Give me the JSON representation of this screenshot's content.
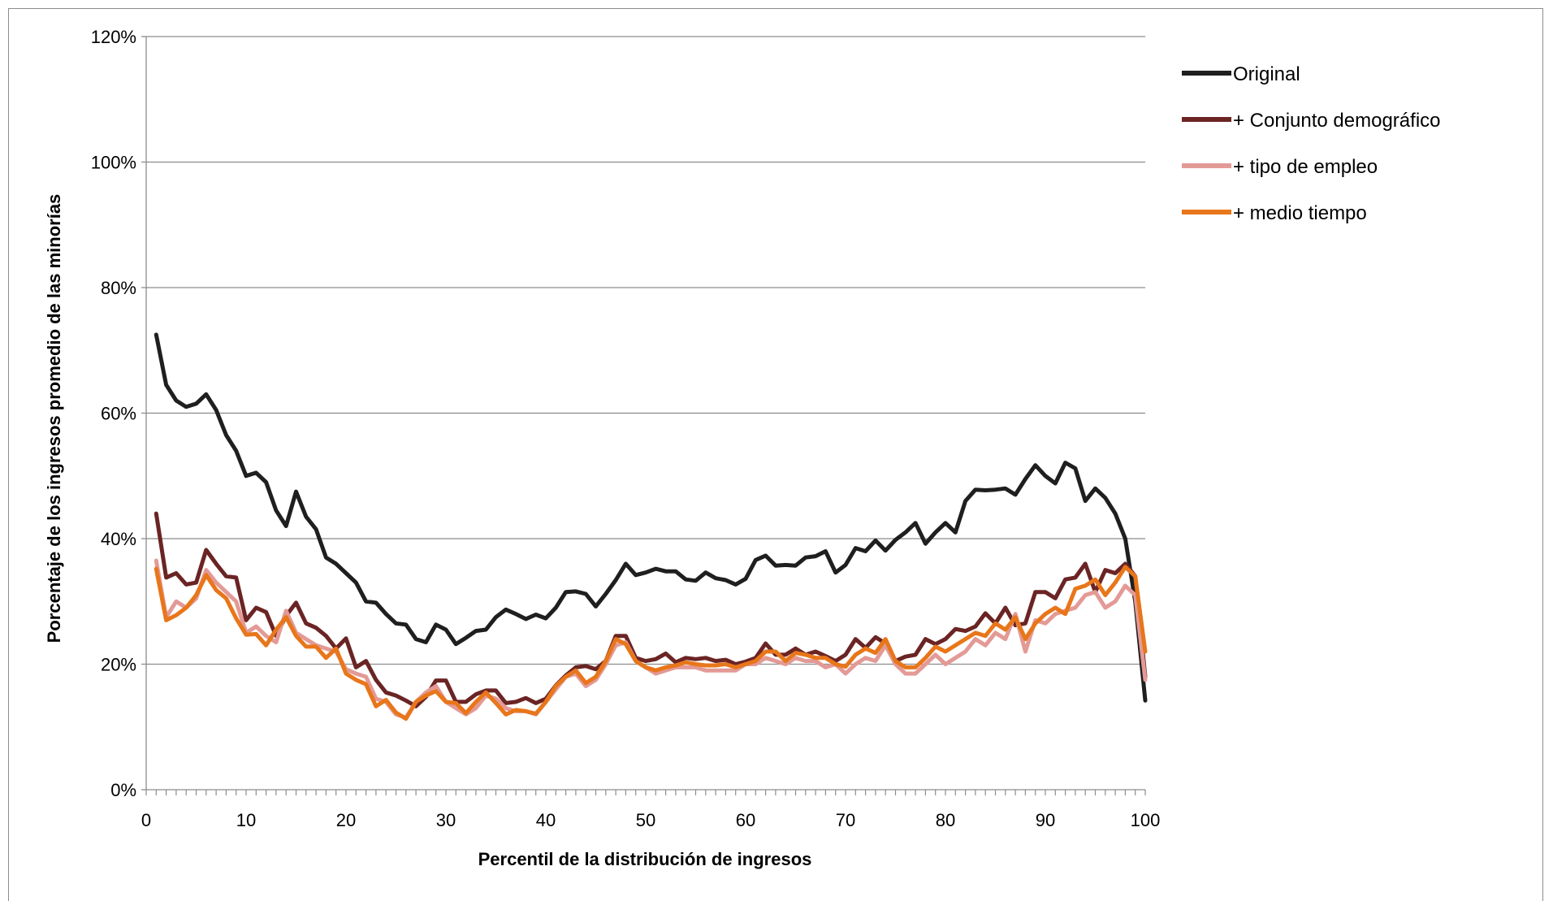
{
  "chart_data": {
    "type": "line",
    "title": "",
    "xlabel": "Percentil de la distribución de ingresos",
    "ylabel": "Porcentaje de los ingresos promedio de las minorías",
    "xlim": [
      0,
      100
    ],
    "ylim": [
      0,
      1.2
    ],
    "x_ticks": [
      0,
      10,
      20,
      30,
      40,
      50,
      60,
      70,
      80,
      90,
      100
    ],
    "x_tick_labels": [
      "0",
      "10",
      "20",
      "30",
      "40",
      "50",
      "60",
      "70",
      "80",
      "90",
      "100"
    ],
    "y_ticks": [
      0,
      0.2,
      0.4,
      0.6,
      0.8,
      1.0,
      1.2
    ],
    "y_tick_labels": [
      "0%",
      "20%",
      "40%",
      "60%",
      "80%",
      "100%",
      "120%"
    ],
    "grid": "horizontal",
    "legend_position": "top-right",
    "x": [
      1,
      2,
      3,
      4,
      5,
      6,
      7,
      8,
      9,
      10,
      11,
      12,
      13,
      14,
      15,
      16,
      17,
      18,
      19,
      20,
      21,
      22,
      23,
      24,
      25,
      26,
      27,
      28,
      29,
      30,
      31,
      32,
      33,
      34,
      35,
      36,
      37,
      38,
      39,
      40,
      41,
      42,
      43,
      44,
      45,
      46,
      47,
      48,
      49,
      50,
      51,
      52,
      53,
      54,
      55,
      56,
      57,
      58,
      59,
      60,
      61,
      62,
      63,
      64,
      65,
      66,
      67,
      68,
      69,
      70,
      71,
      72,
      73,
      74,
      75,
      76,
      77,
      78,
      79,
      80,
      81,
      82,
      83,
      84,
      85,
      86,
      87,
      88,
      89,
      90,
      91,
      92,
      93,
      94,
      95,
      96,
      97,
      98,
      99,
      100
    ],
    "series": [
      {
        "name": "Original",
        "color": "#1f1f1f",
        "values": [
          0.725,
          0.645,
          0.62,
          0.61,
          0.615,
          0.63,
          0.605,
          0.565,
          0.54,
          0.5,
          0.505,
          0.49,
          0.445,
          0.42,
          0.475,
          0.435,
          0.415,
          0.37,
          0.36,
          0.345,
          0.33,
          0.3,
          0.298,
          0.28,
          0.265,
          0.263,
          0.24,
          0.235,
          0.263,
          0.255,
          0.232,
          0.242,
          0.253,
          0.255,
          0.275,
          0.287,
          0.28,
          0.272,
          0.279,
          0.273,
          0.29,
          0.315,
          0.316,
          0.312,
          0.292,
          0.312,
          0.334,
          0.36,
          0.342,
          0.346,
          0.352,
          0.348,
          0.348,
          0.335,
          0.333,
          0.346,
          0.337,
          0.334,
          0.327,
          0.336,
          0.366,
          0.373,
          0.357,
          0.358,
          0.357,
          0.37,
          0.372,
          0.38,
          0.346,
          0.358,
          0.385,
          0.38,
          0.397,
          0.381,
          0.398,
          0.41,
          0.425,
          0.392,
          0.41,
          0.425,
          0.41,
          0.46,
          0.478,
          0.477,
          0.478,
          0.48,
          0.47,
          0.495,
          0.517,
          0.5,
          0.488,
          0.521,
          0.512,
          0.46,
          0.48,
          0.465,
          0.44,
          0.4,
          0.3,
          0.142
        ]
      },
      {
        "name": "+ Conjunto demográfico",
        "color": "#6b2424",
        "values": [
          0.44,
          0.338,
          0.345,
          0.327,
          0.33,
          0.382,
          0.36,
          0.34,
          0.338,
          0.27,
          0.29,
          0.283,
          0.245,
          0.277,
          0.298,
          0.265,
          0.258,
          0.245,
          0.225,
          0.241,
          0.195,
          0.205,
          0.175,
          0.155,
          0.15,
          0.142,
          0.133,
          0.148,
          0.174,
          0.174,
          0.14,
          0.14,
          0.152,
          0.158,
          0.158,
          0.138,
          0.14,
          0.146,
          0.138,
          0.145,
          0.166,
          0.182,
          0.195,
          0.197,
          0.192,
          0.205,
          0.245,
          0.245,
          0.21,
          0.205,
          0.208,
          0.217,
          0.203,
          0.21,
          0.208,
          0.21,
          0.205,
          0.207,
          0.2,
          0.204,
          0.21,
          0.233,
          0.215,
          0.215,
          0.225,
          0.215,
          0.22,
          0.213,
          0.205,
          0.215,
          0.24,
          0.226,
          0.243,
          0.233,
          0.205,
          0.212,
          0.215,
          0.24,
          0.232,
          0.24,
          0.256,
          0.253,
          0.26,
          0.281,
          0.265,
          0.29,
          0.262,
          0.265,
          0.315,
          0.315,
          0.305,
          0.335,
          0.338,
          0.36,
          0.315,
          0.35,
          0.345,
          0.36,
          0.34,
          0.18
        ]
      },
      {
        "name": "+ tipo de empleo",
        "color": "#e39a96",
        "values": [
          0.365,
          0.275,
          0.3,
          0.29,
          0.305,
          0.35,
          0.33,
          0.315,
          0.3,
          0.25,
          0.26,
          0.245,
          0.235,
          0.285,
          0.25,
          0.24,
          0.23,
          0.225,
          0.22,
          0.192,
          0.185,
          0.18,
          0.145,
          0.14,
          0.12,
          0.115,
          0.14,
          0.155,
          0.165,
          0.14,
          0.13,
          0.12,
          0.13,
          0.15,
          0.145,
          0.13,
          0.125,
          0.125,
          0.12,
          0.14,
          0.16,
          0.18,
          0.185,
          0.165,
          0.175,
          0.2,
          0.23,
          0.235,
          0.205,
          0.195,
          0.185,
          0.19,
          0.195,
          0.195,
          0.195,
          0.19,
          0.19,
          0.19,
          0.19,
          0.2,
          0.2,
          0.21,
          0.205,
          0.2,
          0.21,
          0.205,
          0.205,
          0.195,
          0.2,
          0.185,
          0.2,
          0.21,
          0.205,
          0.23,
          0.2,
          0.185,
          0.185,
          0.2,
          0.215,
          0.2,
          0.21,
          0.22,
          0.24,
          0.23,
          0.25,
          0.24,
          0.28,
          0.22,
          0.27,
          0.265,
          0.28,
          0.285,
          0.29,
          0.31,
          0.315,
          0.29,
          0.3,
          0.325,
          0.31,
          0.175
        ]
      },
      {
        "name": "+ medio tiempo",
        "color": "#e8761a",
        "values": [
          0.352,
          0.27,
          0.278,
          0.29,
          0.31,
          0.342,
          0.318,
          0.305,
          0.273,
          0.247,
          0.248,
          0.23,
          0.255,
          0.275,
          0.245,
          0.228,
          0.228,
          0.21,
          0.225,
          0.185,
          0.175,
          0.168,
          0.133,
          0.143,
          0.123,
          0.113,
          0.14,
          0.15,
          0.157,
          0.14,
          0.138,
          0.122,
          0.14,
          0.155,
          0.138,
          0.12,
          0.127,
          0.125,
          0.121,
          0.14,
          0.165,
          0.18,
          0.19,
          0.17,
          0.18,
          0.205,
          0.24,
          0.232,
          0.205,
          0.195,
          0.19,
          0.195,
          0.198,
          0.203,
          0.2,
          0.198,
          0.198,
          0.2,
          0.195,
          0.2,
          0.205,
          0.22,
          0.22,
          0.205,
          0.218,
          0.215,
          0.21,
          0.21,
          0.2,
          0.196,
          0.215,
          0.225,
          0.218,
          0.24,
          0.205,
          0.195,
          0.195,
          0.21,
          0.228,
          0.22,
          0.23,
          0.24,
          0.25,
          0.245,
          0.265,
          0.255,
          0.275,
          0.24,
          0.265,
          0.28,
          0.29,
          0.28,
          0.32,
          0.325,
          0.335,
          0.31,
          0.33,
          0.355,
          0.34,
          0.22
        ]
      }
    ]
  }
}
